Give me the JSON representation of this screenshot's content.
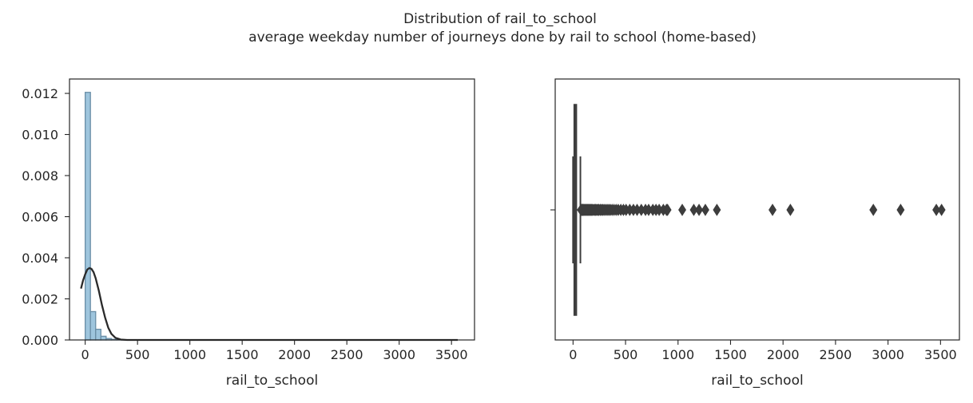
{
  "figure": {
    "title_line1": "Distribution of rail_to_school",
    "title_line2": "average weekday number of journeys done by rail to school (home-based)"
  },
  "chart_data": [
    {
      "type": "histogram",
      "xlabel": "rail_to_school",
      "ylabel": "",
      "xlim": [
        -150,
        3720
      ],
      "ylim": [
        0,
        0.0127
      ],
      "x_ticks": [
        0,
        500,
        1000,
        1500,
        2000,
        2500,
        3000,
        3500
      ],
      "y_ticks": [
        0.0,
        0.002,
        0.004,
        0.006,
        0.008,
        0.01,
        0.012
      ],
      "y_tick_labels": [
        "0.000",
        "0.002",
        "0.004",
        "0.006",
        "0.008",
        "0.010",
        "0.012"
      ],
      "bin_width": 50,
      "bins": [
        {
          "x": 0,
          "density": 0.01205
        },
        {
          "x": 50,
          "density": 0.00138
        },
        {
          "x": 100,
          "density": 0.00052
        },
        {
          "x": 150,
          "density": 0.00018
        },
        {
          "x": 200,
          "density": 7e-05
        },
        {
          "x": 250,
          "density": 3e-05
        },
        {
          "x": 300,
          "density": 2e-05
        },
        {
          "x": 350,
          "density": 1e-05
        }
      ],
      "kde": {
        "type": "line",
        "peak_x": 45,
        "peak_y": 0.0035,
        "points": [
          [
            -40,
            0.0025
          ],
          [
            -20,
            0.0029
          ],
          [
            0,
            0.0032
          ],
          [
            20,
            0.00343
          ],
          [
            40,
            0.0035
          ],
          [
            60,
            0.00346
          ],
          [
            80,
            0.0033
          ],
          [
            100,
            0.003
          ],
          [
            130,
            0.0024
          ],
          [
            160,
            0.0017
          ],
          [
            190,
            0.0011
          ],
          [
            220,
            0.0006
          ],
          [
            250,
            0.0003
          ],
          [
            290,
            0.0001
          ],
          [
            340,
            2e-05
          ],
          [
            400,
            0.0
          ],
          [
            3560,
            0.0
          ]
        ]
      },
      "colors": {
        "bar_fill": "#9ec5dd",
        "bar_edge": "#6a8ea6",
        "kde": "#2a2a2a"
      }
    },
    {
      "type": "boxplot",
      "xlabel": "rail_to_school",
      "xlim": [
        -170,
        3680
      ],
      "x_ticks": [
        0,
        500,
        1000,
        1500,
        2000,
        2500,
        3000,
        3500
      ],
      "box": {
        "q1": 10,
        "median": 20,
        "q3": 30,
        "whisker_low": 0,
        "whisker_high": 70
      },
      "outliers": [
        75,
        80,
        85,
        90,
        95,
        100,
        108,
        115,
        122,
        130,
        138,
        145,
        152,
        160,
        168,
        176,
        185,
        195,
        205,
        215,
        225,
        235,
        245,
        258,
        270,
        282,
        295,
        310,
        325,
        340,
        355,
        372,
        390,
        410,
        430,
        455,
        480,
        505,
        540,
        575,
        610,
        650,
        690,
        720,
        760,
        790,
        820,
        860,
        890,
        900,
        1040,
        1150,
        1200,
        1260,
        1370,
        1900,
        2070,
        2860,
        3120,
        3460,
        3510
      ],
      "colors": {
        "box_fill": "#4a4a4a",
        "edge": "#3d3d3d"
      }
    }
  ]
}
